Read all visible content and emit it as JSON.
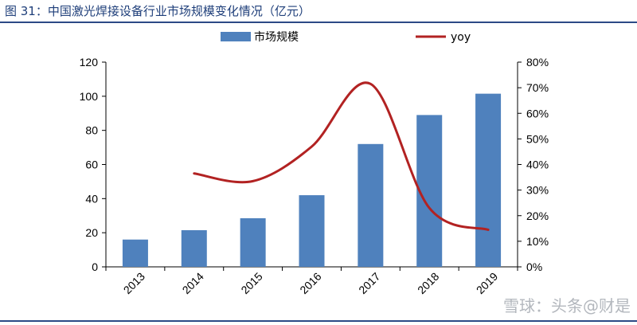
{
  "title": "图 31：中国激光焊接设备行业市场规模变化情况（亿元）",
  "watermark": "雪球：头条@财是",
  "chart_data": {
    "type": "bar",
    "categories": [
      "2013",
      "2014",
      "2015",
      "2016",
      "2017",
      "2018",
      "2019"
    ],
    "series": [
      {
        "name": "市场规模",
        "type": "bar",
        "axis": "left",
        "color": "#4f81bd",
        "values": [
          16,
          21.5,
          28.5,
          42,
          72,
          89,
          101.5
        ]
      },
      {
        "name": "yoy",
        "type": "line",
        "axis": "right",
        "color": "#b22222",
        "values": [
          null,
          0.365,
          0.335,
          0.47,
          0.715,
          0.23,
          0.145
        ]
      }
    ],
    "y_left": {
      "min": 0,
      "max": 120,
      "step": 20,
      "ticks": [
        "0",
        "20",
        "40",
        "60",
        "80",
        "100",
        "120"
      ]
    },
    "y_right": {
      "min": 0,
      "max": 0.8,
      "step": 0.1,
      "ticks": [
        "0%",
        "10%",
        "20%",
        "30%",
        "40%",
        "50%",
        "60%",
        "70%",
        "80%"
      ]
    },
    "grid": false,
    "legend_position": "top"
  }
}
